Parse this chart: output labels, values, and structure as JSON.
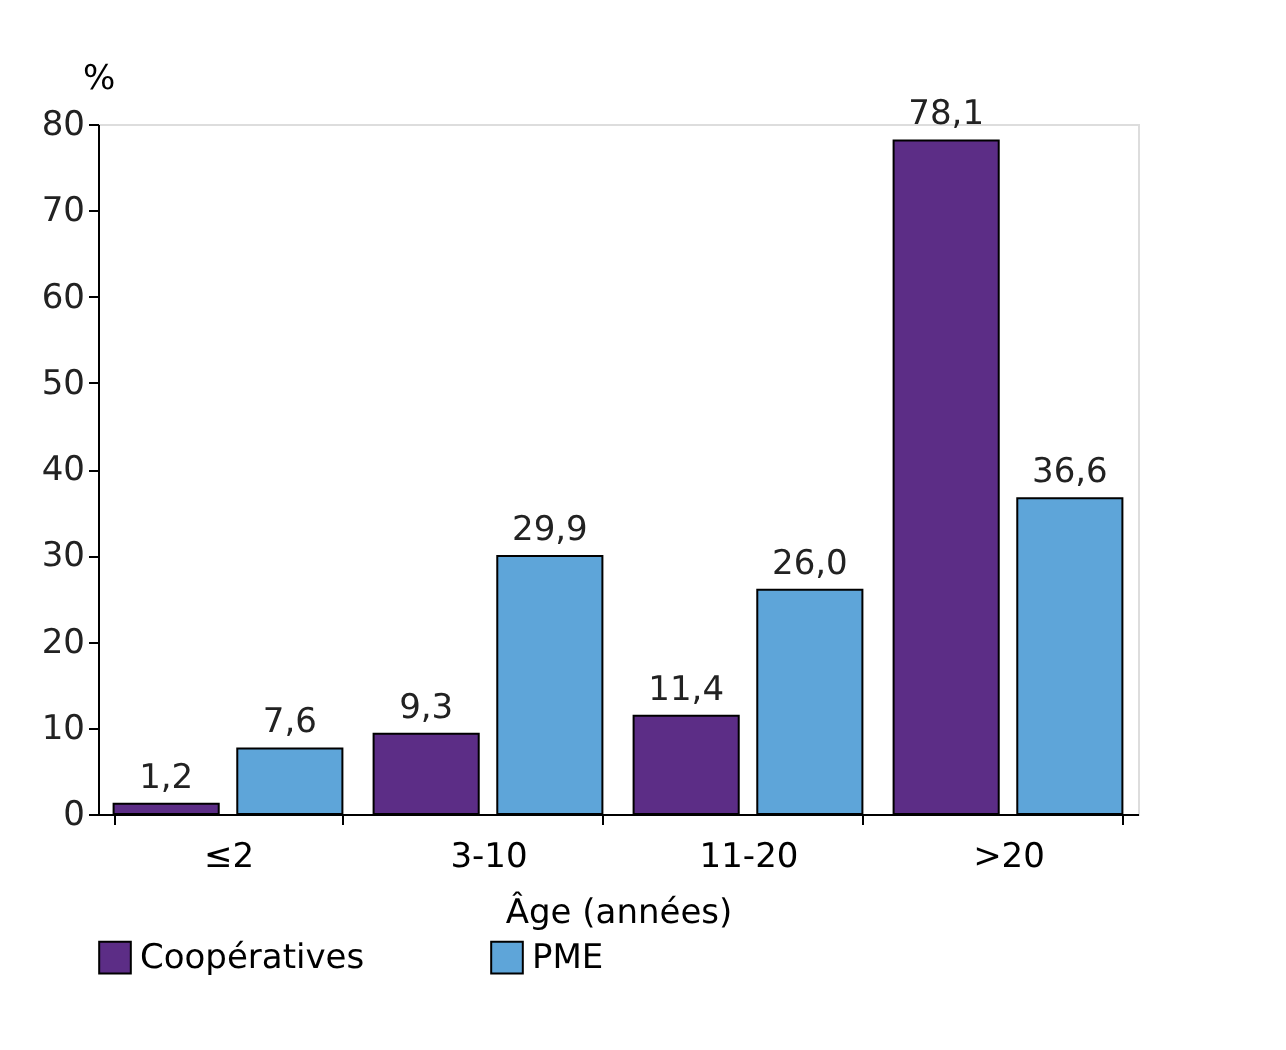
{
  "chart_data": {
    "type": "bar",
    "xlabel": "Âge (années)",
    "ylabel": "%",
    "categories": [
      "≤2",
      "3-10",
      "11-20",
      ">20"
    ],
    "series": [
      {
        "name": "Coopératives",
        "color": "#5c2d86",
        "values": [
          1.2,
          9.3,
          11.4,
          78.1
        ],
        "value_labels": [
          "1,2",
          "9,3",
          "11,4",
          "78,1"
        ]
      },
      {
        "name": "PME",
        "color": "#5ea5d9",
        "values": [
          7.6,
          29.9,
          26.0,
          36.6
        ],
        "value_labels": [
          "7,6",
          "29,9",
          "26,0",
          "36,6"
        ]
      }
    ],
    "ylim": [
      0,
      80
    ],
    "yticks": [
      0,
      10,
      20,
      30,
      40,
      50,
      60,
      70,
      80
    ],
    "grid": false,
    "legend": "bottom"
  }
}
